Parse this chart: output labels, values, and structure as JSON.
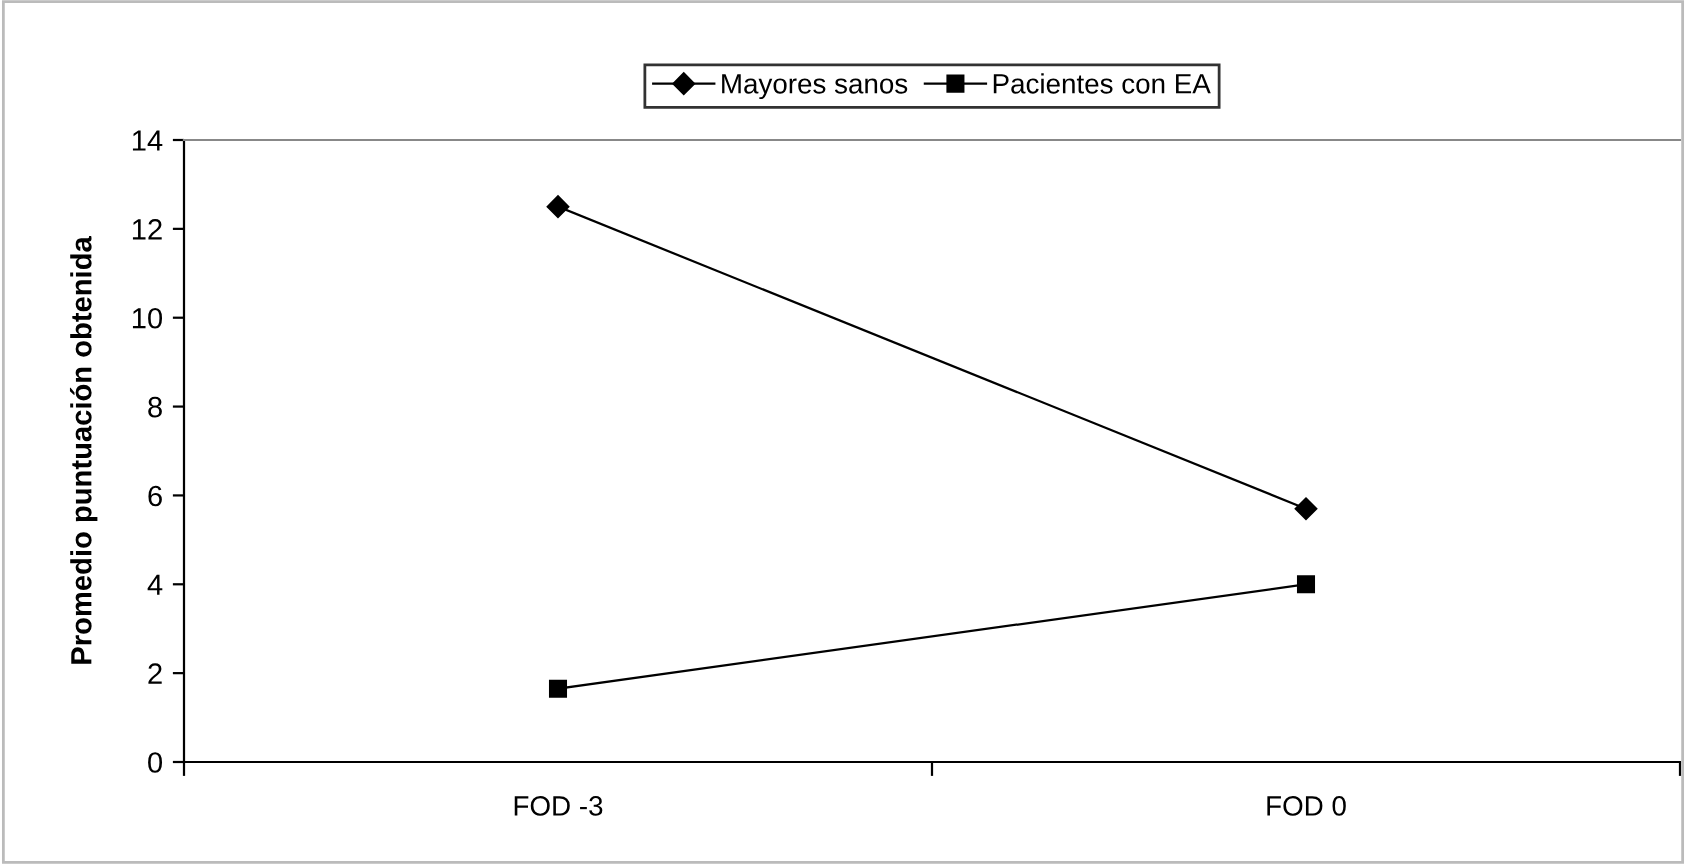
{
  "chart_data": {
    "type": "line",
    "ylabel": "Promedio puntuación obtenida",
    "categories": [
      "FOD -3",
      "FOD 0"
    ],
    "series": [
      {
        "name": "Mayores sanos",
        "color": "#000000",
        "marker": "diamond",
        "values": [
          12.5,
          5.7
        ]
      },
      {
        "name": "Pacientes con EA",
        "color": "#000000",
        "marker": "square",
        "values": [
          1.65,
          4.0
        ]
      }
    ],
    "ylim": [
      0,
      14
    ],
    "yticks": [
      0,
      2,
      4,
      6,
      8,
      10,
      12,
      14
    ],
    "grid": false,
    "legend": "top",
    "line_style": "solid"
  }
}
